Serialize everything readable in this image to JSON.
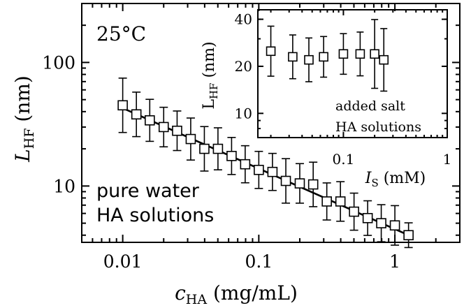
{
  "chart_data": [
    {
      "type": "scatter",
      "panel": "main",
      "scale": {
        "x": "log",
        "y": "log"
      },
      "xlim": [
        0.005,
        3
      ],
      "ylim": [
        3.5,
        300
      ],
      "x_ticks": [
        {
          "value": 0.01,
          "label": "0.01"
        },
        {
          "value": 0.1,
          "label": "0.1"
        },
        {
          "value": 1,
          "label": "1"
        }
      ],
      "y_ticks": [
        {
          "value": 10,
          "label": "10"
        },
        {
          "value": 100,
          "label": "100"
        }
      ],
      "xlabel": {
        "main": "c",
        "sub": "HA",
        "rest": " (mg/mL)"
      },
      "ylabel": {
        "main": "L",
        "sub": "HF",
        "rest": " (nm)"
      },
      "annotations": [
        "25°C",
        "pure water",
        "HA solutions"
      ],
      "marker": "open-square",
      "series": [
        {
          "x": [
            0.01,
            0.0126,
            0.0158,
            0.02,
            0.0251,
            0.0316,
            0.0398,
            0.0501,
            0.0631,
            0.0794,
            0.1,
            0.126,
            0.158,
            0.2,
            0.251,
            0.316,
            0.398,
            0.501,
            0.631,
            0.794,
            1.0,
            1.26
          ],
          "y": [
            45,
            38,
            34,
            30,
            28,
            24,
            20,
            20,
            17.5,
            15,
            13.5,
            13,
            11,
            10.5,
            10.3,
            7.5,
            7.5,
            6.2,
            5.5,
            5,
            4.8,
            4
          ],
          "err": [
            0.22,
            0.18,
            0.17,
            0.16,
            0.16,
            0.17,
            0.18,
            0.17,
            0.15,
            0.15,
            0.15,
            0.15,
            0.18,
            0.16,
            0.18,
            0.15,
            0.16,
            0.15,
            0.14,
            0.15,
            0.16,
            0.1
          ]
        }
      ],
      "fit_line": {
        "x": [
          0.01,
          1.26
        ],
        "y": [
          42.7,
          4.0
        ]
      }
    },
    {
      "type": "scatter",
      "panel": "inset",
      "scale": {
        "x": "log",
        "y": "log"
      },
      "xlim": [
        0.015,
        1
      ],
      "ylim": [
        7,
        46
      ],
      "x_ticks": [
        {
          "value": 0.1,
          "label": "0.1"
        },
        {
          "value": 1,
          "label": "1"
        }
      ],
      "y_ticks": [
        {
          "value": 10,
          "label": "10"
        },
        {
          "value": 20,
          "label": "20"
        },
        {
          "value": 40,
          "label": "40"
        }
      ],
      "xlabel": {
        "main": "I",
        "sub": "S",
        "rest": " (mM)"
      },
      "ylabel": {
        "main": "L",
        "sub": "HF",
        "rest": " (nm)"
      },
      "annotations": [
        "added salt",
        "HA solutions"
      ],
      "marker": "open-square",
      "series": [
        {
          "x": [
            0.02,
            0.0325,
            0.0465,
            0.0645,
            0.1,
            0.145,
            0.2,
            0.245
          ],
          "y": [
            25,
            23,
            22,
            23,
            24,
            24,
            24,
            22
          ],
          "err": [
            0.16,
            0.14,
            0.14,
            0.13,
            0.13,
            0.14,
            0.22,
            0.2
          ]
        }
      ]
    }
  ]
}
